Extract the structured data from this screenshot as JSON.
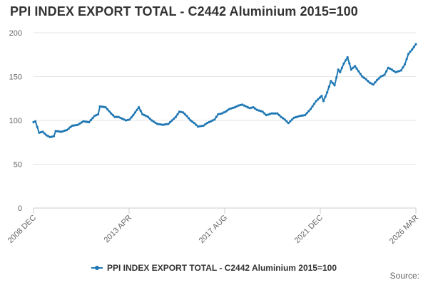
{
  "chart_data": {
    "type": "line",
    "title": "PPI INDEX EXPORT TOTAL - C2442 Aluminium 2015=100",
    "xlabel": "",
    "ylabel": "",
    "ylim": [
      0,
      200
    ],
    "yticks": [
      0,
      50,
      100,
      150,
      200
    ],
    "xtick_labels": [
      "2008 DEC",
      "2013 APR",
      "2017 AUG",
      "2021 DEC",
      "2026 MAR"
    ],
    "grid": true,
    "legend": "bottom-center",
    "series": [
      {
        "name": "PPI INDEX EXPORT TOTAL - C2442 Aluminium 2015=100",
        "color": "#1f77b4",
        "points": [
          [
            "2008-12",
            98
          ],
          [
            "2009-01",
            99
          ],
          [
            "2009-03",
            86
          ],
          [
            "2009-05",
            87
          ],
          [
            "2009-07",
            83
          ],
          [
            "2009-09",
            81
          ],
          [
            "2009-11",
            82
          ],
          [
            "2009-12",
            88
          ],
          [
            "2010-03",
            87
          ],
          [
            "2010-06",
            89
          ],
          [
            "2010-09",
            94
          ],
          [
            "2010-12",
            95
          ],
          [
            "2011-03",
            99
          ],
          [
            "2011-06",
            98
          ],
          [
            "2011-09",
            105
          ],
          [
            "2011-11",
            107
          ],
          [
            "2011-12",
            116
          ],
          [
            "2012-03",
            115
          ],
          [
            "2012-06",
            108
          ],
          [
            "2012-08",
            104
          ],
          [
            "2012-10",
            104
          ],
          [
            "2012-12",
            102
          ],
          [
            "2013-02",
            100
          ],
          [
            "2013-04",
            101
          ],
          [
            "2013-06",
            106
          ],
          [
            "2013-08",
            112
          ],
          [
            "2013-09",
            115
          ],
          [
            "2013-11",
            107
          ],
          [
            "2014-02",
            104
          ],
          [
            "2014-04",
            100
          ],
          [
            "2014-07",
            96
          ],
          [
            "2014-10",
            95
          ],
          [
            "2015-01",
            96
          ],
          [
            "2015-03",
            100
          ],
          [
            "2015-05",
            104
          ],
          [
            "2015-07",
            110
          ],
          [
            "2015-09",
            109
          ],
          [
            "2015-11",
            105
          ],
          [
            "2016-01",
            100
          ],
          [
            "2016-03",
            97
          ],
          [
            "2016-05",
            93
          ],
          [
            "2016-08",
            94
          ],
          [
            "2016-10",
            97
          ],
          [
            "2016-12",
            99
          ],
          [
            "2017-02",
            101
          ],
          [
            "2017-04",
            107
          ],
          [
            "2017-06",
            108
          ],
          [
            "2017-08",
            110
          ],
          [
            "2017-10",
            113
          ],
          [
            "2018-01",
            115
          ],
          [
            "2018-03",
            117
          ],
          [
            "2018-05",
            118
          ],
          [
            "2018-07",
            116
          ],
          [
            "2018-09",
            114
          ],
          [
            "2018-11",
            115
          ],
          [
            "2019-01",
            112
          ],
          [
            "2019-04",
            110
          ],
          [
            "2019-06",
            106
          ],
          [
            "2019-09",
            108
          ],
          [
            "2019-12",
            108
          ],
          [
            "2020-02",
            104
          ],
          [
            "2020-04",
            101
          ],
          [
            "2020-06",
            97
          ],
          [
            "2020-09",
            103
          ],
          [
            "2020-12",
            105
          ],
          [
            "2021-03",
            106
          ],
          [
            "2021-06",
            113
          ],
          [
            "2021-09",
            122
          ],
          [
            "2021-12",
            128
          ],
          [
            "2022-01",
            122
          ],
          [
            "2022-03",
            132
          ],
          [
            "2022-05",
            145
          ],
          [
            "2022-07",
            140
          ],
          [
            "2022-09",
            158
          ],
          [
            "2022-10",
            155
          ],
          [
            "2022-12",
            165
          ],
          [
            "2023-02",
            172
          ],
          [
            "2023-04",
            158
          ],
          [
            "2023-06",
            162
          ],
          [
            "2023-08",
            156
          ],
          [
            "2023-10",
            150
          ],
          [
            "2023-12",
            147
          ],
          [
            "2024-02",
            143
          ],
          [
            "2024-04",
            141
          ],
          [
            "2024-06",
            146
          ],
          [
            "2024-08",
            150
          ],
          [
            "2024-10",
            152
          ],
          [
            "2024-12",
            160
          ],
          [
            "2025-02",
            158
          ],
          [
            "2025-04",
            155
          ],
          [
            "2025-07",
            157
          ],
          [
            "2025-09",
            164
          ],
          [
            "2025-11",
            176
          ],
          [
            "2026-01",
            181
          ],
          [
            "2026-03",
            187
          ]
        ]
      }
    ]
  },
  "source_label": "Source:"
}
